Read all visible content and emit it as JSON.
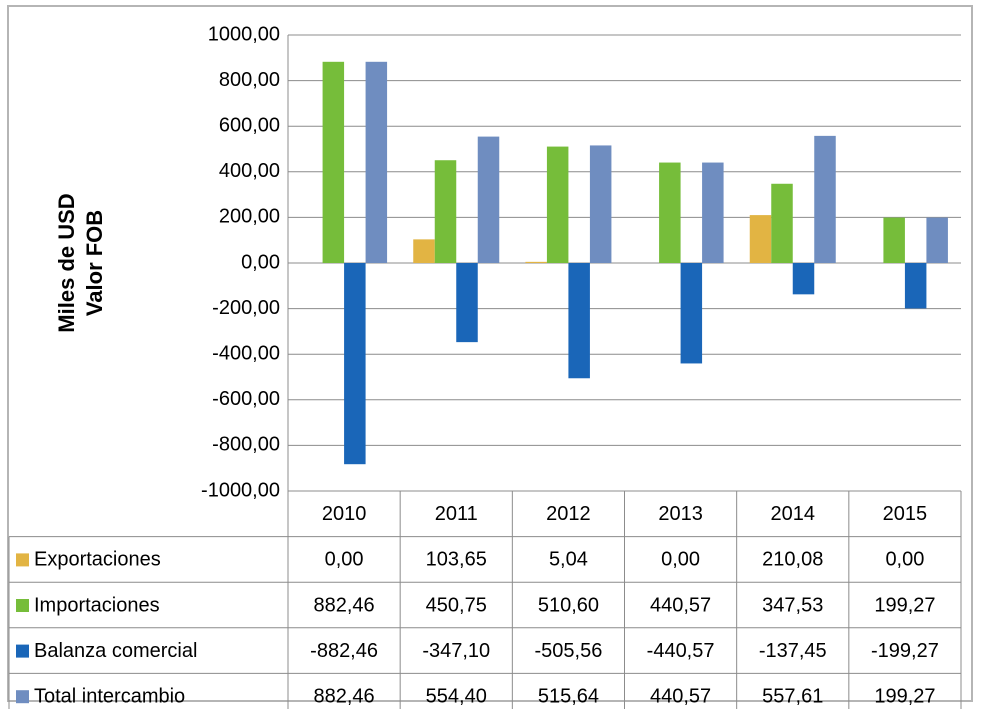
{
  "chart_data": {
    "type": "bar",
    "y_label": [
      "Miles de USD",
      "Valor FOB"
    ],
    "categories": [
      "2010",
      "2011",
      "2012",
      "2013",
      "2014",
      "2015"
    ],
    "series": [
      {
        "name": "Exportaciones",
        "color": "#e2b443",
        "values": [
          0,
          103.65,
          5.04,
          0,
          210.08,
          0
        ],
        "value_labels": [
          "0,00",
          "103,65",
          "5,04",
          "0,00",
          "210,08",
          "0,00"
        ]
      },
      {
        "name": "Importaciones",
        "color": "#76bd3a",
        "values": [
          882.46,
          450.75,
          510.6,
          440.57,
          347.53,
          199.27
        ],
        "value_labels": [
          "882,46",
          "450,75",
          "510,60",
          "440,57",
          "347,53",
          "199,27"
        ]
      },
      {
        "name": "Balanza comercial",
        "color": "#1a66b8",
        "values": [
          -882.46,
          -347.1,
          -505.56,
          -440.57,
          -137.45,
          -199.27
        ],
        "value_labels": [
          "-882,46",
          "-347,10",
          "-505,56",
          "-440,57",
          "-137,45",
          "-199,27"
        ]
      },
      {
        "name": "Total intercambio",
        "color": "#6f8dc0",
        "values": [
          882.46,
          554.4,
          515.64,
          440.57,
          557.61,
          199.27
        ],
        "value_labels": [
          "882,46",
          "554,40",
          "515,64",
          "440,57",
          "557,61",
          "199,27"
        ]
      }
    ],
    "ylim": [
      -1000,
      1000
    ],
    "yticks": [
      {
        "value": -1000,
        "label": "-1000,00"
      },
      {
        "value": -800,
        "label": "-800,00"
      },
      {
        "value": -600,
        "label": "-600,00"
      },
      {
        "value": -400,
        "label": "-400,00"
      },
      {
        "value": -200,
        "label": "-200,00"
      },
      {
        "value": 0,
        "label": "0,00"
      },
      {
        "value": 200,
        "label": "200,00"
      },
      {
        "value": 400,
        "label": "400,00"
      },
      {
        "value": 600,
        "label": "600,00"
      },
      {
        "value": 800,
        "label": "800,00"
      },
      {
        "value": 1000,
        "label": "1000,00"
      }
    ],
    "grid": true
  }
}
